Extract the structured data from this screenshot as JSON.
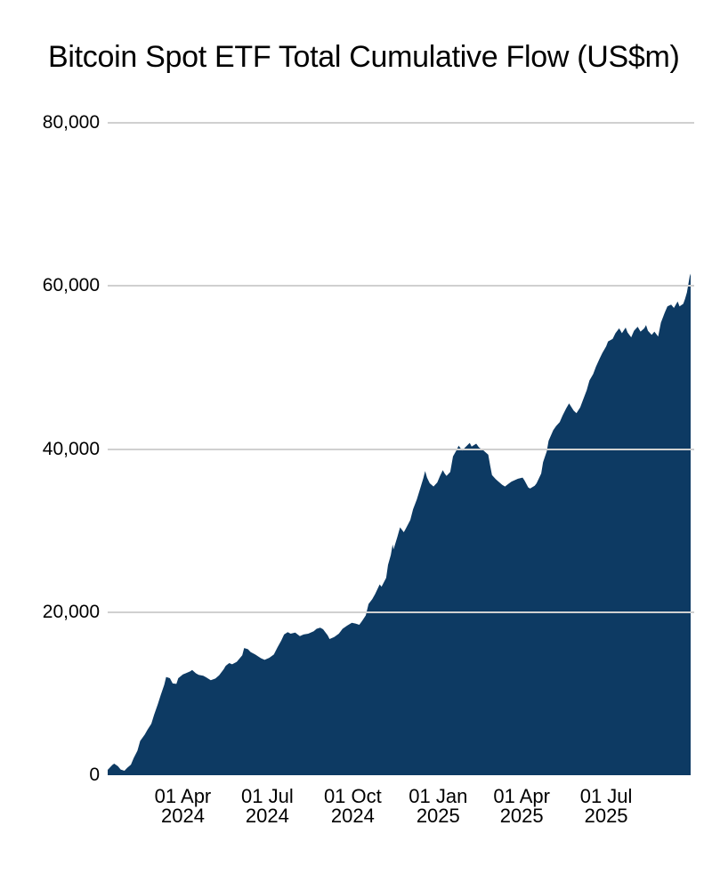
{
  "page": {
    "title": "Bitcoin Spot ETF Total Cumulative Flow (US$m)"
  },
  "chart_data": {
    "type": "area",
    "title": "Bitcoin Spot ETF Total Cumulative Flow (US$m)",
    "xlabel": "",
    "ylabel": "",
    "ylim": [
      0,
      80000
    ],
    "x_domain": [
      "2024-01-11",
      "2025-09-30"
    ],
    "grid": true,
    "legend_position": "none",
    "colors": {
      "area_fill": "#0d3a63",
      "grid_line": "#d0d0d0",
      "text": "#000000",
      "background": "#ffffff"
    },
    "yticks": [
      {
        "value": 0,
        "label": "0"
      },
      {
        "value": 20000,
        "label": "20,000"
      },
      {
        "value": 40000,
        "label": "40,000"
      },
      {
        "value": 60000,
        "label": "60,000"
      },
      {
        "value": 80000,
        "label": "80,000"
      }
    ],
    "xticks": [
      {
        "date": "2024-04-01",
        "line1": "01 Apr",
        "line2": "2024"
      },
      {
        "date": "2024-07-01",
        "line1": "01 Jul",
        "line2": "2024"
      },
      {
        "date": "2024-10-01",
        "line1": "01 Oct",
        "line2": "2024"
      },
      {
        "date": "2025-01-01",
        "line1": "01 Jan",
        "line2": "2025"
      },
      {
        "date": "2025-04-01",
        "line1": "01 Apr",
        "line2": "2025"
      },
      {
        "date": "2025-07-01",
        "line1": "01 Jul",
        "line2": "2025"
      }
    ],
    "series": [
      {
        "name": "Total cumulative flow (US$m)",
        "points": [
          [
            "2024-01-11",
            650
          ],
          [
            "2024-01-16",
            1250
          ],
          [
            "2024-01-18",
            1420
          ],
          [
            "2024-01-22",
            1100
          ],
          [
            "2024-01-25",
            700
          ],
          [
            "2024-01-29",
            550
          ],
          [
            "2024-02-01",
            900
          ],
          [
            "2024-02-05",
            1300
          ],
          [
            "2024-02-08",
            2100
          ],
          [
            "2024-02-12",
            3000
          ],
          [
            "2024-02-15",
            4200
          ],
          [
            "2024-02-20",
            5000
          ],
          [
            "2024-02-23",
            5600
          ],
          [
            "2024-02-27",
            6300
          ],
          [
            "2024-03-01",
            7400
          ],
          [
            "2024-03-05",
            8700
          ],
          [
            "2024-03-08",
            9800
          ],
          [
            "2024-03-12",
            11100
          ],
          [
            "2024-03-14",
            12050
          ],
          [
            "2024-03-18",
            11900
          ],
          [
            "2024-03-21",
            11250
          ],
          [
            "2024-03-25",
            11200
          ],
          [
            "2024-03-27",
            11900
          ],
          [
            "2024-04-01",
            12350
          ],
          [
            "2024-04-04",
            12500
          ],
          [
            "2024-04-09",
            12750
          ],
          [
            "2024-04-11",
            12900
          ],
          [
            "2024-04-15",
            12500
          ],
          [
            "2024-04-18",
            12300
          ],
          [
            "2024-04-23",
            12200
          ],
          [
            "2024-04-26",
            12000
          ],
          [
            "2024-05-01",
            11650
          ],
          [
            "2024-05-06",
            11850
          ],
          [
            "2024-05-10",
            12250
          ],
          [
            "2024-05-15",
            13000
          ],
          [
            "2024-05-17",
            13400
          ],
          [
            "2024-05-21",
            13750
          ],
          [
            "2024-05-24",
            13600
          ],
          [
            "2024-05-29",
            13900
          ],
          [
            "2024-06-04",
            14700
          ],
          [
            "2024-06-06",
            15600
          ],
          [
            "2024-06-10",
            15450
          ],
          [
            "2024-06-13",
            15100
          ],
          [
            "2024-06-18",
            14800
          ],
          [
            "2024-06-24",
            14350
          ],
          [
            "2024-06-28",
            14150
          ],
          [
            "2024-07-03",
            14400
          ],
          [
            "2024-07-08",
            14800
          ],
          [
            "2024-07-12",
            15700
          ],
          [
            "2024-07-16",
            16500
          ],
          [
            "2024-07-19",
            17250
          ],
          [
            "2024-07-23",
            17550
          ],
          [
            "2024-07-26",
            17350
          ],
          [
            "2024-07-31",
            17500
          ],
          [
            "2024-08-05",
            17050
          ],
          [
            "2024-08-09",
            17250
          ],
          [
            "2024-08-14",
            17350
          ],
          [
            "2024-08-20",
            17650
          ],
          [
            "2024-08-23",
            17950
          ],
          [
            "2024-08-27",
            18100
          ],
          [
            "2024-08-30",
            17900
          ],
          [
            "2024-09-04",
            17150
          ],
          [
            "2024-09-06",
            16700
          ],
          [
            "2024-09-11",
            16950
          ],
          [
            "2024-09-16",
            17350
          ],
          [
            "2024-09-20",
            17950
          ],
          [
            "2024-09-25",
            18350
          ],
          [
            "2024-09-30",
            18700
          ],
          [
            "2024-10-04",
            18600
          ],
          [
            "2024-10-08",
            18450
          ],
          [
            "2024-10-11",
            18900
          ],
          [
            "2024-10-15",
            19600
          ],
          [
            "2024-10-18",
            21000
          ],
          [
            "2024-10-22",
            21600
          ],
          [
            "2024-10-25",
            22200
          ],
          [
            "2024-10-30",
            23400
          ],
          [
            "2024-11-01",
            23100
          ],
          [
            "2024-11-06",
            24200
          ],
          [
            "2024-11-08",
            25800
          ],
          [
            "2024-11-11",
            27000
          ],
          [
            "2024-11-13",
            28300
          ],
          [
            "2024-11-14",
            27700
          ],
          [
            "2024-11-18",
            29200
          ],
          [
            "2024-11-21",
            30400
          ],
          [
            "2024-11-25",
            29800
          ],
          [
            "2024-11-27",
            30200
          ],
          [
            "2024-12-02",
            31300
          ],
          [
            "2024-12-05",
            32600
          ],
          [
            "2024-12-09",
            33800
          ],
          [
            "2024-12-12",
            34900
          ],
          [
            "2024-12-16",
            36400
          ],
          [
            "2024-12-18",
            37300
          ],
          [
            "2024-12-20",
            36500
          ],
          [
            "2024-12-23",
            35800
          ],
          [
            "2024-12-27",
            35400
          ],
          [
            "2024-12-31",
            35900
          ],
          [
            "2025-01-03",
            36700
          ],
          [
            "2025-01-06",
            37400
          ],
          [
            "2025-01-08",
            37000
          ],
          [
            "2025-01-10",
            36700
          ],
          [
            "2025-01-14",
            37200
          ],
          [
            "2025-01-17",
            39100
          ],
          [
            "2025-01-21",
            39900
          ],
          [
            "2025-01-23",
            40400
          ],
          [
            "2025-01-27",
            39800
          ],
          [
            "2025-01-30",
            40200
          ],
          [
            "2025-02-04",
            40750
          ],
          [
            "2025-02-06",
            40300
          ],
          [
            "2025-02-11",
            40650
          ],
          [
            "2025-02-14",
            40200
          ],
          [
            "2025-02-19",
            39800
          ],
          [
            "2025-02-24",
            39300
          ],
          [
            "2025-02-26",
            38000
          ],
          [
            "2025-02-28",
            36800
          ],
          [
            "2025-03-04",
            36300
          ],
          [
            "2025-03-07",
            36000
          ],
          [
            "2025-03-11",
            35600
          ],
          [
            "2025-03-14",
            35400
          ],
          [
            "2025-03-18",
            35750
          ],
          [
            "2025-03-21",
            36000
          ],
          [
            "2025-03-25",
            36200
          ],
          [
            "2025-03-28",
            36350
          ],
          [
            "2025-04-02",
            36500
          ],
          [
            "2025-04-04",
            36150
          ],
          [
            "2025-04-08",
            35300
          ],
          [
            "2025-04-10",
            35150
          ],
          [
            "2025-04-15",
            35500
          ],
          [
            "2025-04-17",
            35800
          ],
          [
            "2025-04-22",
            37000
          ],
          [
            "2025-04-24",
            38400
          ],
          [
            "2025-04-28",
            39700
          ],
          [
            "2025-04-30",
            41000
          ],
          [
            "2025-05-05",
            42300
          ],
          [
            "2025-05-08",
            42800
          ],
          [
            "2025-05-12",
            43300
          ],
          [
            "2025-05-15",
            44100
          ],
          [
            "2025-05-19",
            45000
          ],
          [
            "2025-05-22",
            45600
          ],
          [
            "2025-05-27",
            44700
          ],
          [
            "2025-05-30",
            44400
          ],
          [
            "2025-06-03",
            45100
          ],
          [
            "2025-06-06",
            46000
          ],
          [
            "2025-06-10",
            47200
          ],
          [
            "2025-06-13",
            48400
          ],
          [
            "2025-06-17",
            49200
          ],
          [
            "2025-06-20",
            50100
          ],
          [
            "2025-06-24",
            51100
          ],
          [
            "2025-06-27",
            51800
          ],
          [
            "2025-07-01",
            52600
          ],
          [
            "2025-07-03",
            53200
          ],
          [
            "2025-07-08",
            53500
          ],
          [
            "2025-07-11",
            54200
          ],
          [
            "2025-07-15",
            54800
          ],
          [
            "2025-07-18",
            54200
          ],
          [
            "2025-07-22",
            54900
          ],
          [
            "2025-07-24",
            54300
          ],
          [
            "2025-07-28",
            53700
          ],
          [
            "2025-07-31",
            54500
          ],
          [
            "2025-08-04",
            55000
          ],
          [
            "2025-08-07",
            54400
          ],
          [
            "2025-08-11",
            54800
          ],
          [
            "2025-08-13",
            55200
          ],
          [
            "2025-08-15",
            54500
          ],
          [
            "2025-08-19",
            54000
          ],
          [
            "2025-08-22",
            54400
          ],
          [
            "2025-08-26",
            53800
          ],
          [
            "2025-08-29",
            55500
          ],
          [
            "2025-09-02",
            56700
          ],
          [
            "2025-09-05",
            57500
          ],
          [
            "2025-09-09",
            57700
          ],
          [
            "2025-09-12",
            57300
          ],
          [
            "2025-09-16",
            58100
          ],
          [
            "2025-09-18",
            57500
          ],
          [
            "2025-09-22",
            57800
          ],
          [
            "2025-09-24",
            58400
          ],
          [
            "2025-09-26",
            59200
          ],
          [
            "2025-09-29",
            61200
          ],
          [
            "2025-09-30",
            61500
          ]
        ]
      }
    ]
  }
}
